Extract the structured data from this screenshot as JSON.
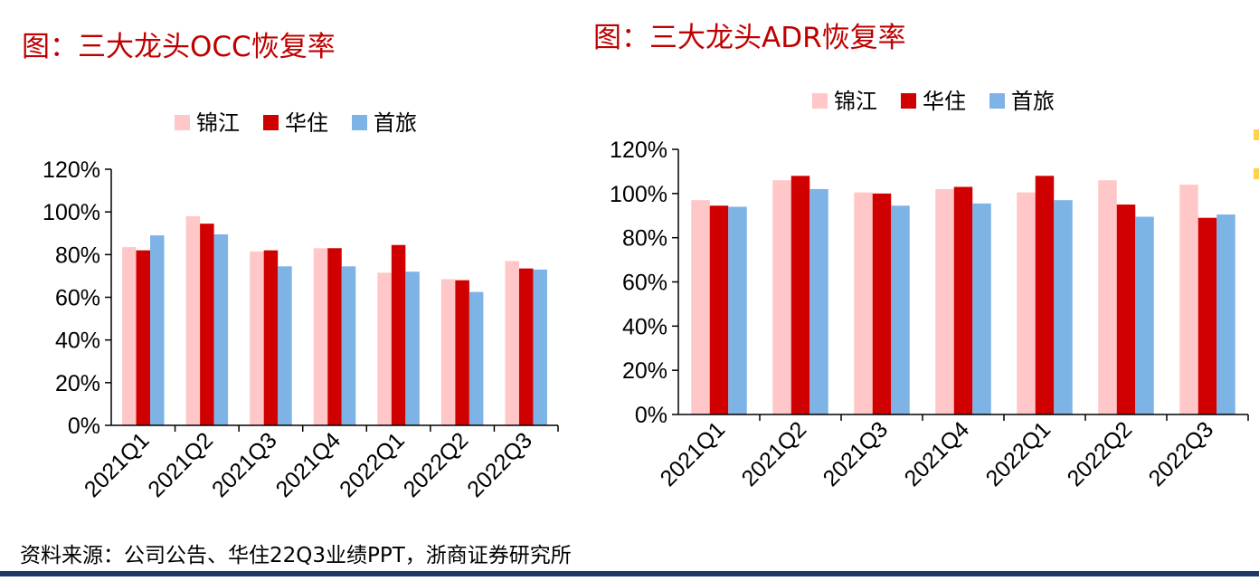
{
  "titles": {
    "left": "图：三大龙头OCC恢复率",
    "right": "图：三大龙头ADR恢复率"
  },
  "source": "资料来源：公司公告、华住22Q3业绩PPT，浙商证券研究所",
  "colors": {
    "jinjiang": "#ffc7c7",
    "huazhu": "#d00000",
    "shoulv": "#7eb3e6",
    "title": "#c00000",
    "bottom_rule": "#1f3864"
  },
  "chart_data": [
    {
      "type": "bar",
      "title": "图：三大龙头OCC恢复率",
      "categories": [
        "2021Q1",
        "2021Q2",
        "2021Q3",
        "2021Q4",
        "2022Q1",
        "2022Q2",
        "2022Q3"
      ],
      "series": [
        {
          "name": "锦江",
          "values": [
            83.5,
            98,
            81.5,
            83,
            71.5,
            68.5,
            77
          ]
        },
        {
          "name": "华住",
          "values": [
            82,
            94.5,
            82,
            83,
            84.5,
            68,
            73.5
          ]
        },
        {
          "name": "首旅",
          "values": [
            89,
            89.5,
            74.5,
            74.5,
            72,
            62.5,
            73
          ]
        }
      ],
      "ylim": [
        0,
        120
      ],
      "yticks": [
        "0%",
        "20%",
        "40%",
        "60%",
        "80%",
        "100%",
        "120%"
      ],
      "ytick_values": [
        0,
        20,
        40,
        60,
        80,
        100,
        120
      ],
      "legend_position": "top",
      "grid": false
    },
    {
      "type": "bar",
      "title": "图：三大龙头ADR恢复率",
      "categories": [
        "2021Q1",
        "2021Q2",
        "2021Q3",
        "2021Q4",
        "2022Q1",
        "2022Q2",
        "2022Q3"
      ],
      "series": [
        {
          "name": "锦江",
          "values": [
            97,
            106,
            100.5,
            102,
            100.5,
            106,
            104
          ]
        },
        {
          "name": "华住",
          "values": [
            94.5,
            108,
            100,
            103,
            108,
            95,
            89
          ]
        },
        {
          "name": "首旅",
          "values": [
            94,
            102,
            94.5,
            95.5,
            97,
            89.5,
            90.5
          ]
        }
      ],
      "ylim": [
        0,
        120
      ],
      "yticks": [
        "0%",
        "20%",
        "40%",
        "60%",
        "80%",
        "100%",
        "120%"
      ],
      "ytick_values": [
        0,
        20,
        40,
        60,
        80,
        100,
        120
      ],
      "legend_position": "top",
      "grid": false
    }
  ]
}
